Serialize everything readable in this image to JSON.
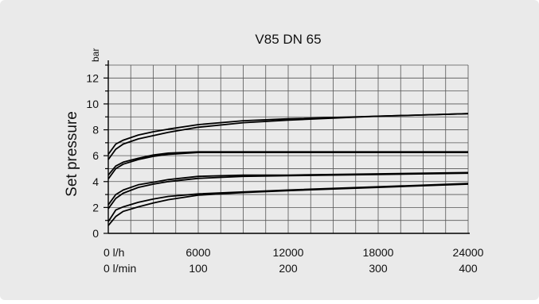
{
  "chart_data": {
    "type": "line",
    "title": "V85 DN 65",
    "ylabel": "Set pressure",
    "yunit": "bar",
    "xunit_primary": "l/h",
    "xunit_secondary": "l/min",
    "xlim": [
      0,
      24000
    ],
    "ylim": [
      0,
      13
    ],
    "grid": true,
    "yticks": [
      0,
      2,
      4,
      6,
      8,
      10,
      12
    ],
    "xticks_primary": [
      "0 l/h",
      "6000",
      "12000",
      "18000",
      "24000"
    ],
    "xticks_secondary": [
      "0 l/min",
      "100",
      "200",
      "300",
      "400"
    ],
    "series": [
      {
        "x": [
          0,
          500,
          1000,
          2000,
          3000,
          4000,
          6000,
          9000,
          12000,
          18000,
          24000
        ],
        "y": [
          0.6,
          1.3,
          1.7,
          2.05,
          2.35,
          2.6,
          2.95,
          3.15,
          3.3,
          3.55,
          3.8
        ]
      },
      {
        "x": [
          0,
          500,
          1000,
          2000,
          3000,
          4000,
          6000,
          9000,
          12000,
          18000,
          24000
        ],
        "y": [
          0.9,
          1.8,
          2.05,
          2.4,
          2.65,
          2.85,
          3.05,
          3.2,
          3.35,
          3.6,
          3.85
        ]
      },
      {
        "x": [
          0,
          500,
          1000,
          2000,
          3000,
          4000,
          6000,
          9000,
          12000,
          18000,
          24000
        ],
        "y": [
          1.9,
          2.7,
          3.1,
          3.55,
          3.8,
          4.0,
          4.25,
          4.4,
          4.45,
          4.55,
          4.65
        ]
      },
      {
        "x": [
          0,
          500,
          1000,
          2000,
          3000,
          4000,
          6000,
          9000,
          12000,
          18000,
          24000
        ],
        "y": [
          2.2,
          3.0,
          3.35,
          3.75,
          3.95,
          4.15,
          4.4,
          4.5,
          4.5,
          4.6,
          4.7
        ]
      },
      {
        "x": [
          0,
          500,
          1000,
          2000,
          3000,
          4000,
          6000,
          9000,
          12000,
          18000,
          24000
        ],
        "y": [
          4.2,
          5.0,
          5.35,
          5.7,
          5.95,
          6.1,
          6.25,
          6.25,
          6.25,
          6.25,
          6.25
        ]
      },
      {
        "x": [
          0,
          500,
          1000,
          2000,
          3000,
          4000,
          6000,
          9000,
          12000,
          18000,
          24000
        ],
        "y": [
          4.5,
          5.2,
          5.5,
          5.8,
          6.05,
          6.2,
          6.3,
          6.3,
          6.3,
          6.3,
          6.3
        ]
      },
      {
        "x": [
          0,
          500,
          1000,
          2000,
          3000,
          4000,
          6000,
          9000,
          12000,
          18000,
          24000
        ],
        "y": [
          5.7,
          6.5,
          6.9,
          7.3,
          7.55,
          7.8,
          8.2,
          8.55,
          8.75,
          9.05,
          9.25
        ]
      },
      {
        "x": [
          0,
          500,
          1000,
          2000,
          3000,
          4000,
          6000,
          9000,
          12000,
          18000,
          24000
        ],
        "y": [
          6.1,
          6.9,
          7.2,
          7.6,
          7.85,
          8.05,
          8.4,
          8.7,
          8.85,
          9.05,
          9.25
        ]
      }
    ]
  }
}
